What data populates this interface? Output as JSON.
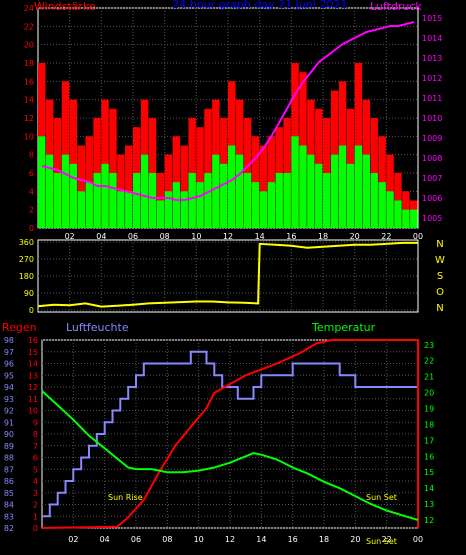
{
  "chart_data": [
    {
      "type": "bar",
      "title": "24-hour graph day  21.Juni 2021",
      "left_label": "Windstärke",
      "right_label": "Luftdruck",
      "x_ticks": [
        "02",
        "04",
        "06",
        "08",
        "10",
        "12",
        "14",
        "16",
        "18",
        "20",
        "22",
        "00"
      ],
      "y_left_ticks": [
        "0",
        "2",
        "4",
        "6",
        "8",
        "10",
        "12",
        "14",
        "16",
        "18",
        "20",
        "22",
        "24"
      ],
      "y_left_range": [
        0,
        24
      ],
      "y_right_ticks": [
        "1005",
        "1006",
        "1007",
        "1008",
        "1009",
        "1010",
        "1011",
        "1012",
        "1013",
        "1014",
        "1015"
      ],
      "y_right_range": [
        1004.5,
        1015.5
      ],
      "hours": [
        0,
        0.5,
        1,
        1.5,
        2,
        2.5,
        3,
        3.5,
        4,
        4.5,
        5,
        5.5,
        6,
        6.5,
        7,
        7.5,
        8,
        8.5,
        9,
        9.5,
        10,
        10.5,
        11,
        11.5,
        12,
        12.5,
        13,
        13.5,
        14,
        14.5,
        15,
        15.5,
        16,
        16.5,
        17,
        17.5,
        18,
        18.5,
        19,
        19.5,
        20,
        20.5,
        21,
        21.5,
        22,
        22.5,
        23,
        23.5
      ],
      "series": [
        {
          "name": "gust",
          "color": "#ff0000",
          "values": [
            18,
            14,
            12,
            16,
            14,
            9,
            10,
            12,
            14,
            13,
            8,
            9,
            11,
            14,
            12,
            6,
            8,
            10,
            9,
            12,
            11,
            13,
            14,
            12,
            16,
            14,
            12,
            10,
            9,
            10,
            11,
            12,
            18,
            17,
            14,
            13,
            12,
            15,
            16,
            13,
            18,
            14,
            12,
            10,
            8,
            6,
            4,
            3
          ]
        },
        {
          "name": "wind",
          "color": "#00ff00",
          "values": [
            10,
            8,
            6,
            8,
            7,
            4,
            5,
            6,
            7,
            6,
            4,
            4,
            6,
            8,
            6,
            3,
            4,
            5,
            4,
            6,
            5,
            6,
            8,
            7,
            9,
            8,
            6,
            5,
            4,
            5,
            6,
            6,
            10,
            9,
            8,
            7,
            6,
            8,
            9,
            7,
            9,
            8,
            6,
            5,
            4,
            3,
            2,
            2
          ]
        },
        {
          "name": "pressure",
          "color": "#ff00ff",
          "values": [
            1007.6,
            1007.5,
            1007.4,
            1007.2,
            1007.0,
            1006.9,
            1006.8,
            1006.6,
            1006.6,
            1006.5,
            1006.4,
            1006.3,
            1006.2,
            1006.1,
            1006.0,
            1006.0,
            1006.0,
            1005.9,
            1005.9,
            1006.0,
            1006.1,
            1006.3,
            1006.5,
            1006.7,
            1006.9,
            1007.2,
            1007.6,
            1008.0,
            1008.5,
            1009.1,
            1009.8,
            1010.5,
            1011.2,
            1011.8,
            1012.3,
            1012.8,
            1013.1,
            1013.4,
            1013.7,
            1013.9,
            1014.1,
            1014.3,
            1014.4,
            1014.5,
            1014.6,
            1014.6,
            1014.7,
            1014.8
          ]
        }
      ]
    },
    {
      "type": "line",
      "right_labels": [
        "N",
        "W",
        "S",
        "O",
        "N"
      ],
      "y_left_ticks": [
        "0",
        "90",
        "180",
        "270",
        "360"
      ],
      "y_range": [
        0,
        360
      ],
      "series": [
        {
          "name": "direction",
          "color": "#ffff00",
          "x": [
            0,
            1,
            2,
            3,
            4,
            5,
            6,
            7,
            8,
            9,
            10,
            11,
            12,
            13,
            13.9,
            14,
            15,
            16,
            17,
            18,
            19,
            20,
            21,
            22,
            23,
            24
          ],
          "values": [
            20,
            28,
            25,
            35,
            18,
            22,
            28,
            35,
            38,
            42,
            45,
            45,
            40,
            38,
            35,
            350,
            345,
            340,
            330,
            335,
            340,
            345,
            345,
            350,
            355,
            355
          ]
        }
      ]
    },
    {
      "type": "line",
      "left_label_1": "Regen",
      "left_label_2": "Luftfeuchte",
      "right_label": "Temperatur",
      "x_ticks": [
        "02",
        "04",
        "06",
        "08",
        "10",
        "12",
        "14",
        "16",
        "18",
        "20",
        "22",
        "00"
      ],
      "y_humidity_ticks": [
        "82",
        "83",
        "84",
        "85",
        "86",
        "87",
        "88",
        "89",
        "90",
        "91",
        "92",
        "93",
        "94",
        "95",
        "96",
        "97",
        "98"
      ],
      "y_humidity_range": [
        82,
        98
      ],
      "y_rain_ticks": [
        "0",
        "1",
        "2",
        "3",
        "4",
        "5",
        "6",
        "7",
        "8",
        "9",
        "10",
        "11",
        "12",
        "13",
        "14",
        "15",
        "16"
      ],
      "y_rain_range": [
        0,
        16
      ],
      "y_temp_ticks": [
        "12",
        "13",
        "14",
        "15",
        "16",
        "17",
        "18",
        "19",
        "20",
        "21",
        "22",
        "23"
      ],
      "y_temp_range": [
        11.5,
        23.3
      ],
      "annotations": [
        "Sun Rise",
        "Sun Set",
        "Sun Set"
      ],
      "series": [
        {
          "name": "humidity",
          "color": "#8888ff",
          "x": [
            0,
            0.5,
            1,
            1.5,
            2,
            2.5,
            3,
            3.5,
            4,
            4.5,
            5,
            5.5,
            6,
            6.5,
            7,
            8,
            9,
            9.5,
            10,
            10.5,
            11,
            11.5,
            12,
            12.5,
            13,
            13.5,
            14,
            15,
            16,
            17,
            18,
            19,
            20,
            21,
            22,
            23,
            24
          ],
          "values": [
            83,
            84,
            85,
            86,
            87,
            88,
            89,
            90,
            91,
            92,
            93,
            94,
            95,
            96,
            96,
            96,
            96,
            97,
            97,
            96,
            95,
            94,
            94,
            93,
            93,
            94,
            95,
            95,
            96,
            96,
            96,
            95,
            94,
            94,
            94,
            94,
            94
          ]
        },
        {
          "name": "rain",
          "color": "#ff0000",
          "x": [
            0,
            4.8,
            5.5,
            6.5,
            7.5,
            8.5,
            9.5,
            10.5,
            11,
            13,
            15,
            16.5,
            17.5,
            18.5,
            19.5,
            24,
            24
          ],
          "values": [
            0,
            0.1,
            0.9,
            2.4,
            4.8,
            7.0,
            8.6,
            10.2,
            11.5,
            13.0,
            14.0,
            14.9,
            15.7,
            16,
            16,
            16,
            0
          ]
        },
        {
          "name": "temperature",
          "color": "#00ff00",
          "x": [
            0,
            1,
            2,
            3,
            4,
            5,
            5.5,
            6,
            7,
            8,
            9,
            10,
            11,
            12,
            13,
            13.5,
            14,
            15,
            16,
            17,
            18,
            19,
            20,
            21,
            22,
            23,
            24
          ],
          "values": [
            20.1,
            19.2,
            18.3,
            17.3,
            16.5,
            15.7,
            15.3,
            15.2,
            15.2,
            15.0,
            15.0,
            15.1,
            15.3,
            15.6,
            16.0,
            16.2,
            16.1,
            15.8,
            15.3,
            14.9,
            14.4,
            14.0,
            13.5,
            13.0,
            12.6,
            12.3,
            12.0
          ]
        }
      ]
    }
  ]
}
